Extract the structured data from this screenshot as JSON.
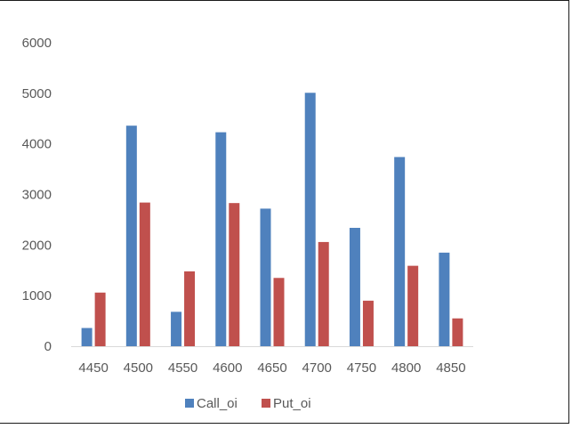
{
  "chart_data": {
    "type": "bar",
    "categories": [
      "4450",
      "4500",
      "4550",
      "4600",
      "4650",
      "4700",
      "4750",
      "4800",
      "4850"
    ],
    "series": [
      {
        "name": "Call_oi",
        "color": "#4f81bd",
        "values": [
          360,
          4360,
          680,
          4230,
          2720,
          5010,
          2340,
          3740,
          1850
        ]
      },
      {
        "name": "Put_oi",
        "color": "#c0504d",
        "values": [
          1060,
          2840,
          1480,
          2830,
          1350,
          2060,
          900,
          1590,
          550
        ]
      }
    ],
    "ylim": [
      0,
      6000
    ],
    "yticks": [
      0,
      1000,
      2000,
      3000,
      4000,
      5000,
      6000
    ],
    "grid": false,
    "legend_position": "bottom",
    "axis_color": "#d9d9d9",
    "text_color": "#595959"
  }
}
